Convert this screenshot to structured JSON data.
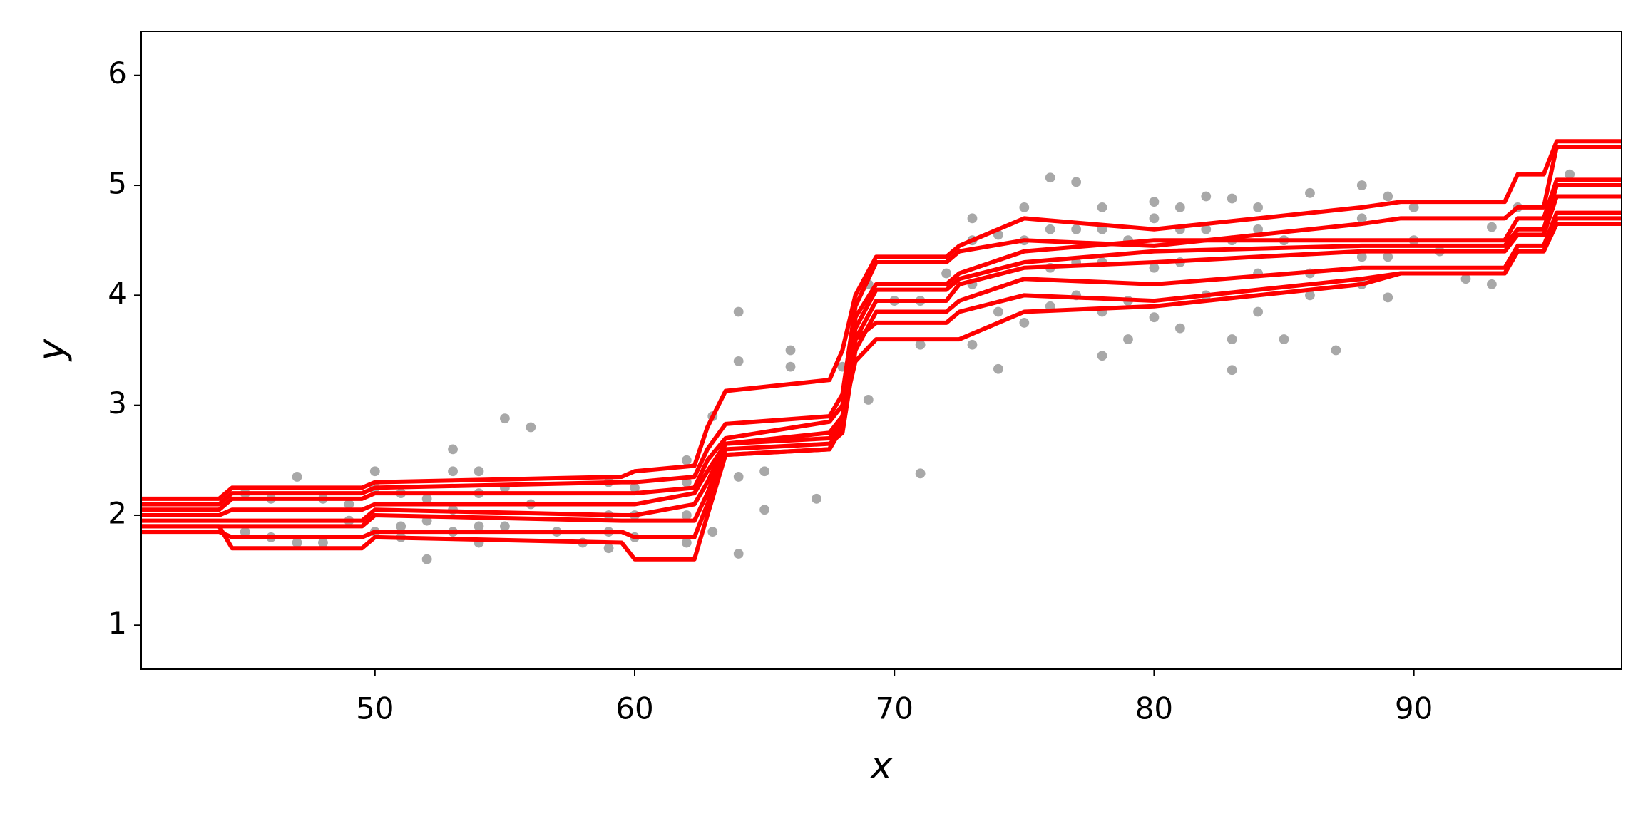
{
  "chart_data": {
    "type": "line",
    "x_label": "x",
    "y_label": "y",
    "xlim": [
      41,
      98
    ],
    "ylim": [
      0.6,
      6.4
    ],
    "xticks": [
      50,
      60,
      70,
      80,
      90
    ],
    "yticks": [
      1,
      2,
      3,
      4,
      5,
      6
    ],
    "grid": false,
    "x": [
      41,
      44,
      44.5,
      49.5,
      50,
      59.5,
      60,
      62.3,
      62.8,
      63.5,
      67.5,
      68,
      68.5,
      69.3,
      72,
      72.5,
      75,
      80,
      88,
      89.5,
      93.5,
      94,
      95,
      95.5,
      98
    ],
    "series": [
      {
        "color": "#ff0000",
        "values": [
          2.15,
          2.15,
          2.25,
          2.25,
          2.3,
          2.35,
          2.4,
          2.45,
          2.8,
          3.13,
          3.23,
          3.5,
          4.0,
          4.35,
          4.35,
          4.45,
          4.7,
          4.6,
          4.8,
          4.85,
          4.85,
          5.1,
          5.1,
          5.4,
          5.4
        ]
      },
      {
        "color": "#ff0000",
        "values": [
          2.1,
          2.1,
          2.2,
          2.2,
          2.25,
          2.3,
          2.3,
          2.35,
          2.6,
          2.83,
          2.9,
          3.1,
          3.9,
          4.3,
          4.3,
          4.4,
          4.5,
          4.45,
          4.65,
          4.7,
          4.7,
          4.8,
          4.8,
          5.35,
          5.35
        ]
      },
      {
        "color": "#ff0000",
        "values": [
          2.05,
          2.05,
          2.15,
          2.15,
          2.2,
          2.2,
          2.2,
          2.25,
          2.5,
          2.7,
          2.85,
          3.0,
          3.8,
          4.1,
          4.1,
          4.2,
          4.4,
          4.5,
          4.5,
          4.5,
          4.5,
          4.7,
          4.7,
          5.05,
          5.05
        ]
      },
      {
        "color": "#ff0000",
        "values": [
          2.0,
          2.0,
          2.05,
          2.05,
          2.1,
          2.1,
          2.1,
          2.2,
          2.4,
          2.65,
          2.75,
          2.9,
          3.7,
          4.05,
          4.05,
          4.15,
          4.3,
          4.4,
          4.45,
          4.45,
          4.45,
          4.6,
          4.6,
          5.0,
          5.0
        ]
      },
      {
        "color": "#ff0000",
        "values": [
          1.95,
          1.95,
          1.95,
          1.95,
          2.05,
          2.0,
          2.0,
          2.1,
          2.3,
          2.65,
          2.7,
          2.85,
          3.6,
          3.95,
          3.95,
          4.1,
          4.25,
          4.3,
          4.4,
          4.4,
          4.4,
          4.55,
          4.55,
          4.9,
          4.9
        ]
      },
      {
        "color": "#ff0000",
        "values": [
          1.9,
          1.9,
          1.9,
          1.9,
          2.0,
          1.95,
          1.95,
          1.95,
          2.2,
          2.6,
          2.65,
          2.75,
          3.5,
          3.85,
          3.85,
          3.95,
          4.15,
          4.1,
          4.25,
          4.25,
          4.25,
          4.45,
          4.45,
          4.75,
          4.75
        ]
      },
      {
        "color": "#ff0000",
        "values": [
          1.85,
          1.85,
          1.8,
          1.8,
          1.85,
          1.85,
          1.8,
          1.8,
          2.1,
          2.55,
          2.6,
          2.8,
          3.6,
          3.75,
          3.75,
          3.85,
          4.0,
          3.95,
          4.15,
          4.2,
          4.2,
          4.4,
          4.4,
          4.7,
          4.7
        ]
      },
      {
        "color": "#ff0000",
        "values": [
          1.9,
          1.9,
          1.7,
          1.7,
          1.8,
          1.75,
          1.6,
          1.6,
          2.0,
          2.55,
          2.6,
          2.9,
          3.4,
          3.6,
          3.6,
          3.6,
          3.85,
          3.9,
          4.1,
          4.2,
          4.2,
          4.4,
          4.4,
          4.65,
          4.65
        ]
      }
    ],
    "scatter": {
      "color": "#999999",
      "x": [
        45,
        45,
        46,
        46,
        47,
        47,
        48,
        48,
        49,
        49,
        50,
        50,
        50,
        51,
        51,
        51,
        52,
        52,
        52,
        53,
        53,
        53,
        53,
        54,
        54,
        54,
        54,
        55,
        55,
        55,
        56,
        56,
        57,
        58,
        59,
        59,
        59,
        59,
        60,
        60,
        60,
        62,
        62,
        62,
        62,
        63,
        63,
        64,
        64,
        64,
        64,
        65,
        65,
        66,
        66,
        67,
        68,
        69,
        69,
        70,
        71,
        71,
        71,
        72,
        73,
        73,
        73,
        73,
        74,
        74,
        74,
        75,
        75,
        75,
        76,
        76,
        76,
        76,
        77,
        77,
        77,
        77,
        78,
        78,
        78,
        78,
        78,
        79,
        79,
        79,
        80,
        80,
        80,
        80,
        81,
        81,
        81,
        81,
        82,
        82,
        82,
        83,
        83,
        83,
        83,
        84,
        84,
        84,
        84,
        85,
        85,
        86,
        86,
        86,
        87,
        88,
        88,
        88,
        88,
        89,
        89,
        89,
        90,
        90,
        91,
        92,
        93,
        93,
        94,
        96
      ],
      "y": [
        2.2,
        1.85,
        2.15,
        1.8,
        2.35,
        1.75,
        2.15,
        1.75,
        2.1,
        1.95,
        2.4,
        2.25,
        1.85,
        2.2,
        1.9,
        1.8,
        2.15,
        1.95,
        1.6,
        2.6,
        2.4,
        2.05,
        1.85,
        2.4,
        2.2,
        1.9,
        1.75,
        2.88,
        2.25,
        1.9,
        2.8,
        2.1,
        1.85,
        1.75,
        2.3,
        2.0,
        1.85,
        1.7,
        2.25,
        2.0,
        1.8,
        2.5,
        2.3,
        2.0,
        1.75,
        2.9,
        1.85,
        3.85,
        3.4,
        2.35,
        1.65,
        2.4,
        2.05,
        3.5,
        3.35,
        2.15,
        3.35,
        4.1,
        3.05,
        3.95,
        3.95,
        3.55,
        2.38,
        4.2,
        4.7,
        4.5,
        4.1,
        3.55,
        4.55,
        3.85,
        3.33,
        4.8,
        4.5,
        3.75,
        5.07,
        4.6,
        4.25,
        3.9,
        5.03,
        4.6,
        4.3,
        4.0,
        4.8,
        4.6,
        4.3,
        3.85,
        3.45,
        4.5,
        3.95,
        3.6,
        4.85,
        4.7,
        4.25,
        3.8,
        4.8,
        4.6,
        4.3,
        3.7,
        4.9,
        4.6,
        4.0,
        4.88,
        4.5,
        3.6,
        3.32,
        4.8,
        4.6,
        4.2,
        3.85,
        4.5,
        3.6,
        4.93,
        4.2,
        4.0,
        3.5,
        5.0,
        4.7,
        4.35,
        4.1,
        4.9,
        4.35,
        3.98,
        4.8,
        4.5,
        4.4,
        4.15,
        4.62,
        4.1,
        4.8,
        5.1
      ]
    }
  }
}
